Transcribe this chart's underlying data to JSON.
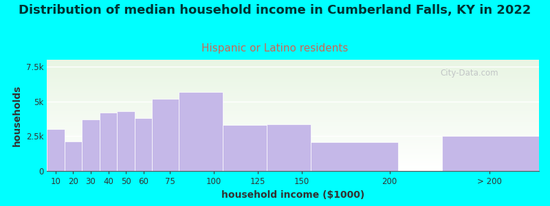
{
  "title": "Distribution of median household income in Cumberland Falls, KY in 2022",
  "subtitle": "Hispanic or Latino residents",
  "xlabel": "household income ($1000)",
  "ylabel": "households",
  "background_color": "#00FFFF",
  "bar_color": "#c5b8e8",
  "title_fontsize": 13,
  "subtitle_fontsize": 11,
  "title_color": "#003333",
  "subtitle_color": "#cc6655",
  "axis_label_fontsize": 10,
  "yticks": [
    0,
    2500,
    5000,
    7500
  ],
  "ytick_labels": [
    "0",
    "2.5k",
    "5k",
    "7.5k"
  ],
  "ylim": [
    0,
    8000
  ],
  "watermark": "City-Data.com",
  "bar_data": [
    [
      5,
      10,
      3000,
      "10"
    ],
    [
      15,
      10,
      2100,
      "20"
    ],
    [
      25,
      10,
      3700,
      "30"
    ],
    [
      35,
      10,
      4200,
      "40"
    ],
    [
      45,
      10,
      4300,
      "50"
    ],
    [
      55,
      10,
      3800,
      "60"
    ],
    [
      65,
      15,
      5200,
      "75"
    ],
    [
      80,
      25,
      5700,
      "100"
    ],
    [
      105,
      25,
      3300,
      "125"
    ],
    [
      130,
      25,
      3350,
      "150"
    ],
    [
      155,
      50,
      2050,
      "200"
    ],
    [
      230,
      55,
      2500,
      "> 200"
    ]
  ],
  "xtick_positions": [
    10,
    20,
    30,
    40,
    50,
    60,
    75,
    100,
    125,
    150,
    200,
    257
  ],
  "xtick_labels": [
    "10",
    "20",
    "30",
    "40",
    "50",
    "60",
    "75",
    "100",
    "125",
    "150",
    "200",
    "> 200"
  ],
  "xlim": [
    5,
    285
  ]
}
